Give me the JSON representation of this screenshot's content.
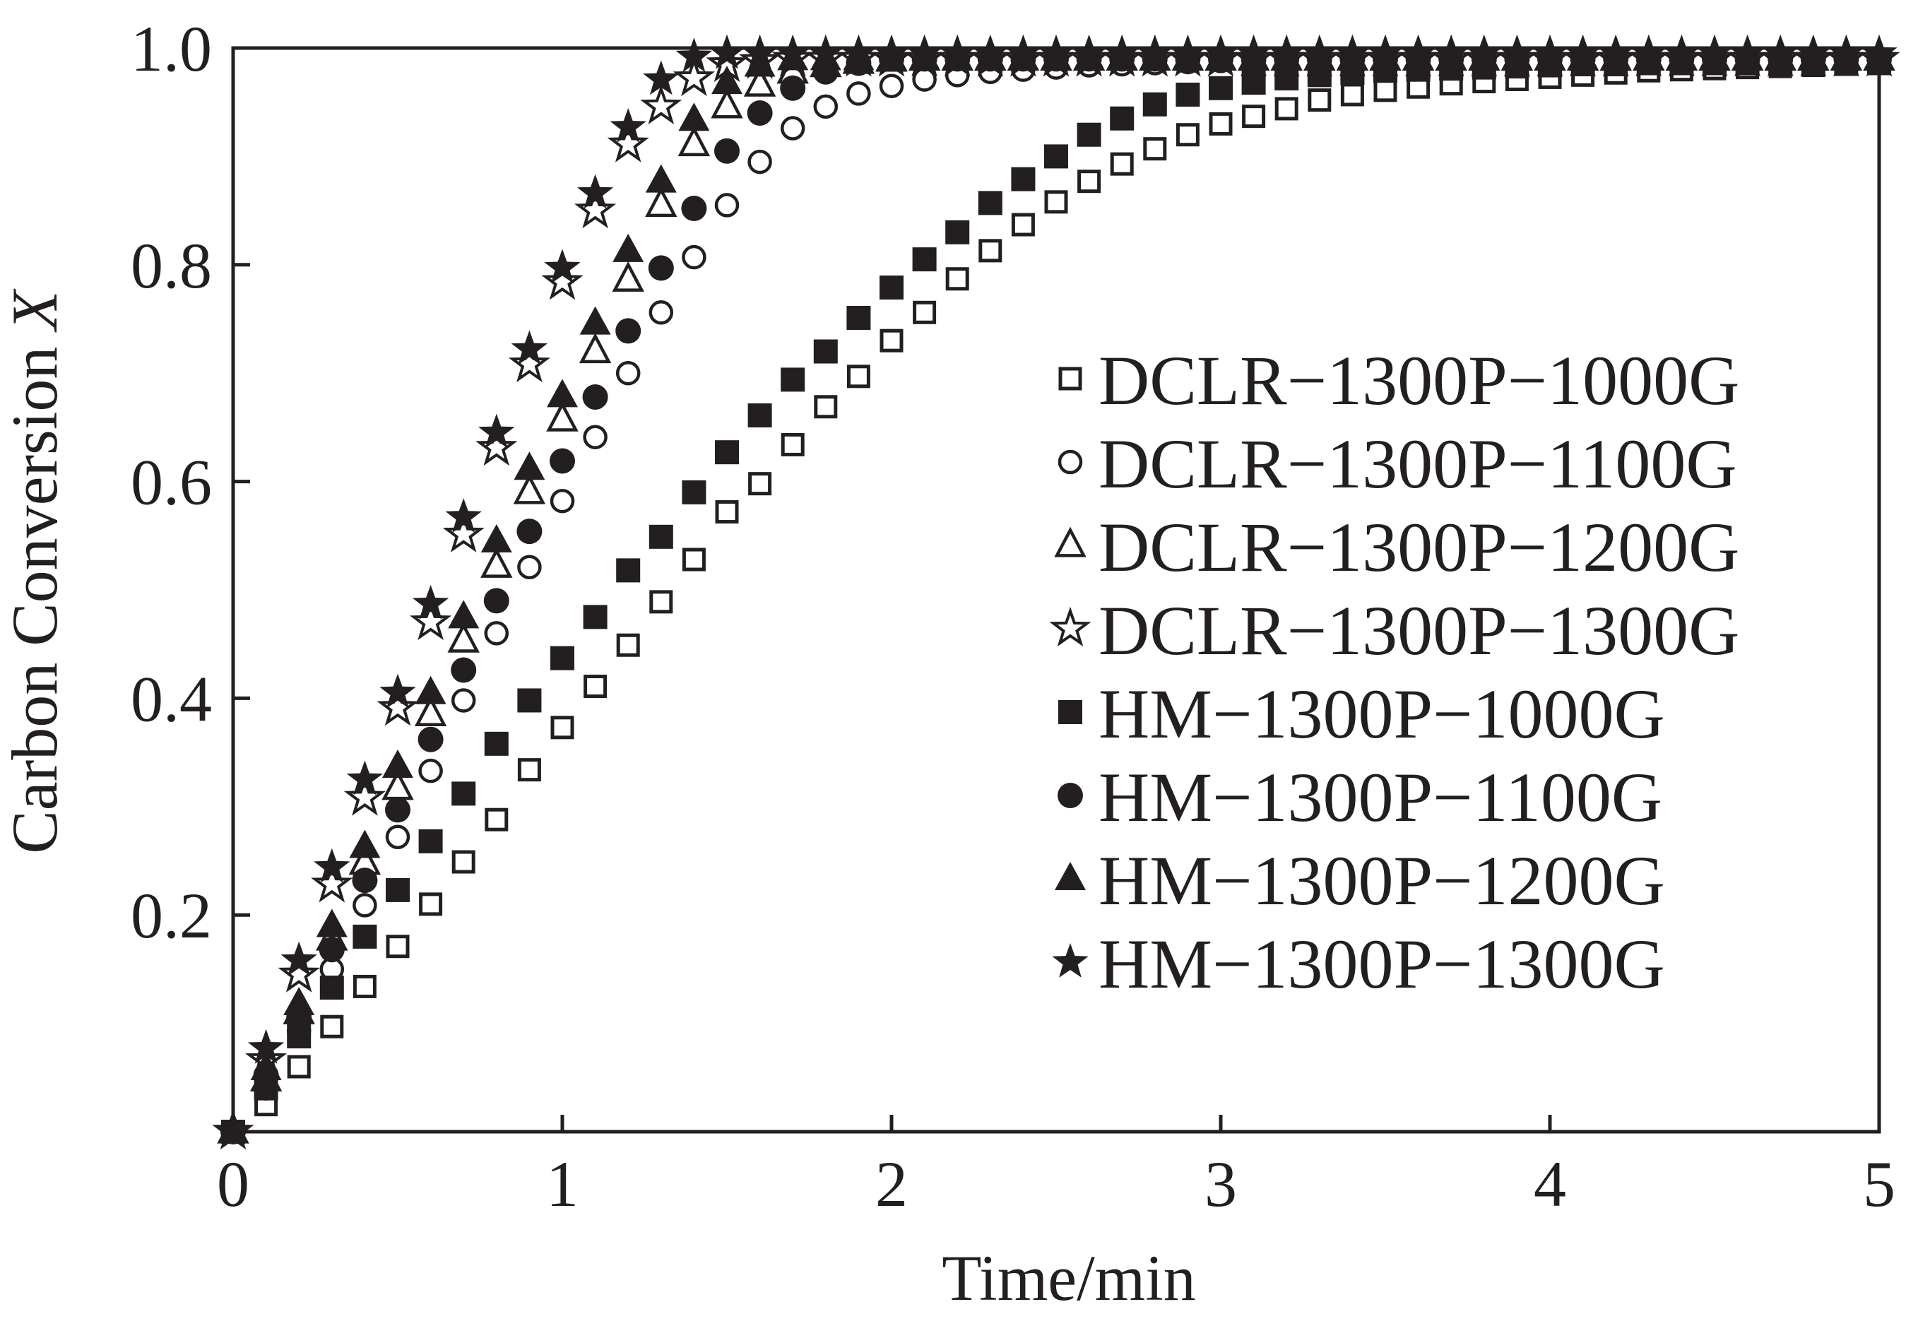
{
  "chart_data": {
    "type": "scatter",
    "xlabel": "Time/min",
    "ylabel_main": "Carbon Conversion ",
    "ylabel_var": "X",
    "xlim": [
      0,
      5
    ],
    "ylim": [
      0,
      1.0
    ],
    "x_ticks": [
      0,
      1,
      2,
      3,
      4,
      5
    ],
    "x_tick_labels": [
      "0",
      "1",
      "2",
      "3",
      "4",
      "5"
    ],
    "y_ticks": [
      0.2,
      0.4,
      0.6,
      0.8,
      1.0
    ],
    "y_tick_labels": [
      "0.2",
      "0.4",
      "0.6",
      "0.8",
      "1.0"
    ],
    "grid": false,
    "legend_position": "right",
    "x": [
      0,
      0.1,
      0.2,
      0.3,
      0.4,
      0.5,
      0.6,
      0.7,
      0.8,
      0.9,
      1.0,
      1.1,
      1.2,
      1.3,
      1.4,
      1.5,
      1.6,
      1.7,
      1.8,
      1.9,
      2.0,
      2.1,
      2.2,
      2.3,
      2.4,
      2.5,
      2.6,
      2.7,
      2.8,
      2.9,
      3.0,
      3.1,
      3.2,
      3.3,
      3.4,
      3.5,
      3.6,
      3.7,
      3.8,
      3.9,
      4.0,
      4.1,
      4.2,
      4.3,
      4.4,
      4.5,
      4.6,
      4.7,
      4.8,
      4.9,
      5.0
    ],
    "series": [
      {
        "name": "DCLR−1300P−1000G",
        "marker": "square-open",
        "values": [
          0,
          0.025,
          0.06,
          0.097,
          0.134,
          0.171,
          0.21,
          0.249,
          0.288,
          0.334,
          0.373,
          0.411,
          0.449,
          0.489,
          0.528,
          0.572,
          0.598,
          0.634,
          0.669,
          0.697,
          0.73,
          0.756,
          0.787,
          0.813,
          0.837,
          0.858,
          0.877,
          0.893,
          0.907,
          0.92,
          0.93,
          0.937,
          0.944,
          0.952,
          0.957,
          0.961,
          0.964,
          0.967,
          0.969,
          0.971,
          0.973,
          0.975,
          0.977,
          0.979,
          0.98,
          0.981,
          0.982,
          0.983,
          0.984,
          0.985,
          0.986
        ]
      },
      {
        "name": "DCLR−1300P−1100G",
        "marker": "circle-open",
        "values": [
          0,
          0.04,
          0.093,
          0.15,
          0.209,
          0.272,
          0.333,
          0.398,
          0.46,
          0.521,
          0.582,
          0.641,
          0.7,
          0.756,
          0.807,
          0.855,
          0.895,
          0.926,
          0.946,
          0.958,
          0.965,
          0.971,
          0.975,
          0.978,
          0.98,
          0.982,
          0.984,
          0.985,
          0.986,
          0.987,
          0.988,
          0.988,
          0.989,
          0.989,
          0.99,
          0.99,
          0.99,
          0.99,
          0.99,
          0.99,
          0.99,
          0.99,
          0.99,
          0.99,
          0.99,
          0.99,
          0.99,
          0.99,
          0.99,
          0.99,
          0.99
        ]
      },
      {
        "name": "DCLR−1300P−1200G",
        "marker": "triangle-open",
        "values": [
          0,
          0.048,
          0.11,
          0.178,
          0.248,
          0.317,
          0.385,
          0.453,
          0.522,
          0.59,
          0.657,
          0.72,
          0.786,
          0.855,
          0.911,
          0.946,
          0.966,
          0.978,
          0.984,
          0.987,
          0.989,
          0.99,
          0.99,
          0.99,
          0.99,
          0.99,
          0.99,
          0.99,
          0.99,
          0.99,
          0.99,
          0.99,
          0.99,
          0.99,
          0.99,
          0.99,
          0.99,
          0.99,
          0.99,
          0.99,
          0.99,
          0.99,
          0.99,
          0.99,
          0.99,
          0.99,
          0.99,
          0.99,
          0.99,
          0.99,
          0.99
        ]
      },
      {
        "name": "DCLR−1300P−1300G",
        "marker": "star-open",
        "values": [
          0,
          0.066,
          0.145,
          0.228,
          0.308,
          0.391,
          0.47,
          0.551,
          0.631,
          0.708,
          0.784,
          0.85,
          0.911,
          0.946,
          0.972,
          0.985,
          0.988,
          0.99,
          0.99,
          0.99,
          0.99,
          0.99,
          0.99,
          0.99,
          0.99,
          0.99,
          0.99,
          0.99,
          0.99,
          0.99,
          0.99,
          0.99,
          0.99,
          0.99,
          0.99,
          0.99,
          0.99,
          0.99,
          0.99,
          0.99,
          0.99,
          0.99,
          0.99,
          0.99,
          0.99,
          0.99,
          0.99,
          0.99,
          0.99,
          0.99,
          0.99
        ]
      },
      {
        "name": "HM−1300P−1000G",
        "marker": "square-filled",
        "values": [
          0,
          0.04,
          0.088,
          0.133,
          0.18,
          0.223,
          0.268,
          0.312,
          0.358,
          0.398,
          0.437,
          0.475,
          0.518,
          0.549,
          0.59,
          0.627,
          0.661,
          0.694,
          0.72,
          0.751,
          0.779,
          0.805,
          0.83,
          0.857,
          0.879,
          0.9,
          0.92,
          0.935,
          0.948,
          0.957,
          0.963,
          0.968,
          0.972,
          0.975,
          0.977,
          0.979,
          0.98,
          0.981,
          0.982,
          0.983,
          0.984,
          0.985,
          0.985,
          0.986,
          0.986,
          0.986,
          0.986,
          0.986,
          0.986,
          0.986,
          0.986
        ]
      },
      {
        "name": "HM−1300P−1100G",
        "marker": "circle-filled",
        "values": [
          0,
          0.052,
          0.105,
          0.168,
          0.232,
          0.297,
          0.362,
          0.426,
          0.49,
          0.554,
          0.619,
          0.678,
          0.739,
          0.797,
          0.852,
          0.905,
          0.94,
          0.963,
          0.978,
          0.986,
          0.99,
          0.99,
          0.99,
          0.99,
          0.99,
          0.99,
          0.99,
          0.99,
          0.99,
          0.99,
          0.99,
          0.99,
          0.99,
          0.99,
          0.99,
          0.99,
          0.99,
          0.99,
          0.99,
          0.99,
          0.99,
          0.99,
          0.99,
          0.99,
          0.99,
          0.99,
          0.99,
          0.99,
          0.99,
          0.99,
          0.99
        ]
      },
      {
        "name": "HM−1300P−1200G",
        "marker": "triangle-filled",
        "values": [
          0,
          0.058,
          0.118,
          0.19,
          0.263,
          0.337,
          0.405,
          0.475,
          0.545,
          0.612,
          0.679,
          0.746,
          0.813,
          0.877,
          0.934,
          0.968,
          0.984,
          0.99,
          0.99,
          0.99,
          0.99,
          0.99,
          0.99,
          0.99,
          0.99,
          0.99,
          0.99,
          0.99,
          0.99,
          0.99,
          0.99,
          0.99,
          0.99,
          0.99,
          0.99,
          0.99,
          0.99,
          0.99,
          0.99,
          0.99,
          0.99,
          0.99,
          0.99,
          0.99,
          0.99,
          0.99,
          0.99,
          0.99,
          0.99,
          0.99,
          0.99
        ]
      },
      {
        "name": "HM−1300P−1300G",
        "marker": "star-filled",
        "values": [
          0,
          0.077,
          0.158,
          0.244,
          0.325,
          0.405,
          0.487,
          0.567,
          0.645,
          0.722,
          0.797,
          0.866,
          0.927,
          0.971,
          0.992,
          0.995,
          0.995,
          0.995,
          0.995,
          0.995,
          0.995,
          0.995,
          0.995,
          0.995,
          0.995,
          0.995,
          0.995,
          0.995,
          0.995,
          0.995,
          0.995,
          0.995,
          0.995,
          0.995,
          0.995,
          0.995,
          0.995,
          0.995,
          0.995,
          0.995,
          0.995,
          0.995,
          0.995,
          0.995,
          0.995,
          0.995,
          0.995,
          0.995,
          0.995,
          0.995,
          0.995
        ]
      }
    ],
    "colors": {
      "ink": "#231f20",
      "background": "#ffffff"
    }
  }
}
